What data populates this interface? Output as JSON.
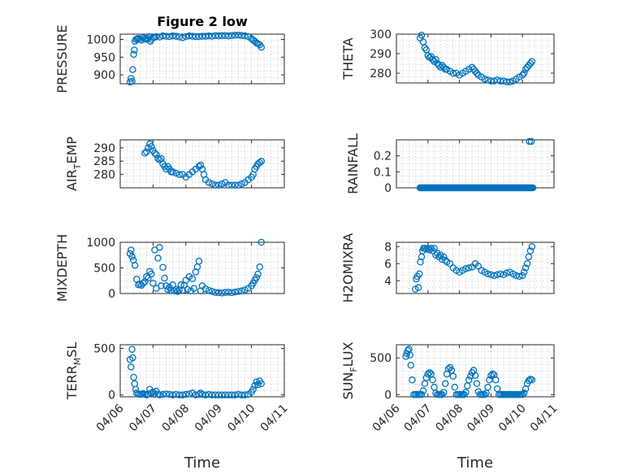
{
  "figure": {
    "title": "Figure 2 low"
  },
  "chart_data": [
    {
      "name": "pressure",
      "type": "scatter",
      "title": "Figure 2 low",
      "xlabel": "",
      "ylabel": "PRESSURE",
      "xlim": [
        0,
        5
      ],
      "ylim": [
        875,
        1015
      ],
      "yticks": [
        900,
        950,
        1000
      ],
      "ytick_labels": [
        "900",
        "950",
        "1000"
      ],
      "xticks": [
        0,
        1,
        2,
        3,
        4,
        5
      ],
      "grid": true,
      "marker_color": "#0072BD",
      "x": [
        0.3,
        0.33,
        0.36,
        0.38,
        0.41,
        0.43,
        0.45,
        0.48,
        0.52,
        0.55,
        0.6,
        0.65,
        0.7,
        0.75,
        0.8,
        0.85,
        0.88,
        0.92,
        0.95,
        1.0,
        1.05,
        1.1,
        1.2,
        1.3,
        1.4,
        1.5,
        1.6,
        1.7,
        1.8,
        1.9,
        2.0,
        2.1,
        2.2,
        2.3,
        2.4,
        2.5,
        2.6,
        2.7,
        2.8,
        2.9,
        3.0,
        3.1,
        3.2,
        3.3,
        3.4,
        3.5,
        3.6,
        3.7,
        3.8,
        3.9,
        4.0,
        4.05,
        4.1,
        4.15,
        4.2,
        4.25,
        4.3
      ],
      "y": [
        880,
        890,
        882,
        915,
        958,
        970,
        995,
        1000,
        1002,
        1003,
        1000,
        998,
        1005,
        1002,
        1000,
        1003,
        1008,
        995,
        1000,
        1005,
        1006,
        1008,
        1007,
        1010,
        1009,
        1008,
        1010,
        1009,
        1007,
        1005,
        1008,
        1010,
        1009,
        1008,
        1008,
        1009,
        1009,
        1010,
        1009,
        1011,
        1010,
        1011,
        1011,
        1010,
        1011,
        1012,
        1012,
        1011,
        1010,
        1008,
        1002,
        998,
        995,
        990,
        988,
        985,
        978
      ]
    },
    {
      "name": "theta",
      "type": "scatter",
      "title": "",
      "xlabel": "",
      "ylabel": "THETA",
      "xlim": [
        0,
        5
      ],
      "ylim": [
        275,
        300
      ],
      "yticks": [
        280,
        290,
        300
      ],
      "ytick_labels": [
        "280",
        "290",
        "300"
      ],
      "xticks": [
        0,
        1,
        2,
        3,
        4,
        5
      ],
      "grid": true,
      "marker_color": "#0072BD",
      "x": [
        0.75,
        0.8,
        0.85,
        0.9,
        0.95,
        1.0,
        1.05,
        1.1,
        1.15,
        1.2,
        1.25,
        1.3,
        1.35,
        1.4,
        1.45,
        1.5,
        1.55,
        1.6,
        1.7,
        1.8,
        1.9,
        2.0,
        2.1,
        2.2,
        2.3,
        2.4,
        2.45,
        2.5,
        2.55,
        2.6,
        2.7,
        2.8,
        2.9,
        3.0,
        3.1,
        3.2,
        3.3,
        3.4,
        3.5,
        3.6,
        3.7,
        3.8,
        3.9,
        4.0,
        4.05,
        4.1,
        4.15,
        4.2,
        4.25,
        4.3
      ],
      "y": [
        298,
        299.5,
        296,
        293,
        292,
        289,
        288,
        288.5,
        287,
        286,
        287,
        285,
        284,
        283,
        284,
        283,
        282,
        282,
        281,
        280,
        280,
        279,
        280,
        281,
        282,
        283,
        282,
        281,
        280,
        279,
        278,
        277,
        276.5,
        276,
        276,
        276.5,
        276,
        276,
        275.5,
        275.5,
        276,
        277,
        278,
        279,
        280,
        282,
        283,
        284,
        285,
        286
      ]
    },
    {
      "name": "air-temp",
      "type": "scatter",
      "title": "",
      "xlabel": "",
      "ylabel": "AIR_TEMP",
      "ylabel_main": "AIR",
      "ylabel_sub": "T",
      "ylabel_tail": "EMP",
      "xlim": [
        0,
        5
      ],
      "ylim": [
        275,
        293
      ],
      "yticks": [
        280,
        285,
        290
      ],
      "ytick_labels": [
        "280",
        "285",
        "290"
      ],
      "xticks": [
        0,
        1,
        2,
        3,
        4,
        5
      ],
      "grid": true,
      "marker_color": "#0072BD",
      "x": [
        0.75,
        0.8,
        0.85,
        0.9,
        0.95,
        1.0,
        1.05,
        1.1,
        1.15,
        1.2,
        1.25,
        1.3,
        1.35,
        1.4,
        1.45,
        1.5,
        1.55,
        1.6,
        1.7,
        1.8,
        1.9,
        2.0,
        2.1,
        2.2,
        2.3,
        2.4,
        2.45,
        2.5,
        2.55,
        2.6,
        2.7,
        2.8,
        2.9,
        3.0,
        3.1,
        3.2,
        3.3,
        3.4,
        3.5,
        3.6,
        3.7,
        3.8,
        3.9,
        4.0,
        4.05,
        4.1,
        4.15,
        4.2,
        4.25,
        4.3
      ],
      "y": [
        288,
        288.5,
        290,
        291.5,
        290.5,
        289,
        288,
        287.5,
        286,
        285.5,
        286,
        284,
        283,
        282,
        283,
        282,
        281,
        281,
        280.5,
        280,
        280,
        279,
        280,
        281,
        282,
        283,
        283.5,
        282,
        280,
        278,
        277,
        276.5,
        276,
        276,
        276.5,
        277,
        276,
        276,
        276,
        276,
        276.5,
        277,
        278,
        279,
        280,
        282,
        283,
        284,
        284.5,
        285
      ]
    },
    {
      "name": "rainfall",
      "type": "scatter",
      "title": "",
      "xlabel": "",
      "ylabel": "RAINFALL",
      "xlim": [
        0,
        5
      ],
      "ylim": [
        0,
        0.3
      ],
      "yticks": [
        0,
        0.1,
        0.2
      ],
      "ytick_labels": [
        "0",
        "0.1",
        "0.2"
      ],
      "xticks": [
        0,
        1,
        2,
        3,
        4,
        5
      ],
      "grid": true,
      "marker_color": "#0072BD",
      "x_range": [
        0.75,
        4.3
      ],
      "x_step": 0.03,
      "y_const": 0,
      "extra_x": [
        4.22,
        4.28,
        4.33
      ],
      "extra_y": [
        0.29,
        0.29,
        0
      ]
    },
    {
      "name": "mixdepth",
      "type": "scatter",
      "title": "",
      "xlabel": "",
      "ylabel": "MIXDEPTH",
      "xlim": [
        0,
        5
      ],
      "ylim": [
        0,
        1000
      ],
      "yticks": [
        0,
        500,
        1000
      ],
      "ytick_labels": [
        "0",
        "500",
        "1000"
      ],
      "xticks": [
        0,
        1,
        2,
        3,
        4,
        5
      ],
      "grid": true,
      "marker_color": "#0072BD",
      "x": [
        0.3,
        0.33,
        0.36,
        0.4,
        0.45,
        0.5,
        0.55,
        0.6,
        0.65,
        0.7,
        0.75,
        0.8,
        0.85,
        0.9,
        0.95,
        1.0,
        1.05,
        1.1,
        1.15,
        1.2,
        1.25,
        1.3,
        1.35,
        1.4,
        1.45,
        1.5,
        1.55,
        1.6,
        1.65,
        1.7,
        1.75,
        1.8,
        1.85,
        1.9,
        1.95,
        2.0,
        2.05,
        2.1,
        2.15,
        2.2,
        2.25,
        2.3,
        2.35,
        2.4,
        2.45,
        2.5,
        2.6,
        2.7,
        2.8,
        2.9,
        3.0,
        3.1,
        3.2,
        3.3,
        3.4,
        3.5,
        3.6,
        3.7,
        3.8,
        3.9,
        4.0,
        4.05,
        4.1,
        4.15,
        4.2,
        4.25,
        4.3
      ],
      "y": [
        780,
        850,
        720,
        650,
        550,
        280,
        170,
        180,
        160,
        200,
        230,
        330,
        300,
        430,
        380,
        200,
        850,
        100,
        690,
        900,
        150,
        510,
        300,
        150,
        80,
        120,
        60,
        170,
        50,
        80,
        40,
        70,
        170,
        60,
        160,
        260,
        80,
        330,
        50,
        290,
        100,
        420,
        520,
        630,
        50,
        150,
        90,
        60,
        40,
        20,
        15,
        10,
        20,
        25,
        15,
        30,
        40,
        50,
        70,
        100,
        150,
        200,
        260,
        310,
        380,
        520,
        1000
      ]
    },
    {
      "name": "h2omixra",
      "type": "scatter",
      "title": "",
      "xlabel": "",
      "ylabel": "H2OMIXRA",
      "xlim": [
        0,
        5
      ],
      "ylim": [
        2.5,
        8.5
      ],
      "yticks": [
        4,
        6,
        8
      ],
      "ytick_labels": [
        "4",
        "6",
        "8"
      ],
      "xticks": [
        0,
        1,
        2,
        3,
        4,
        5
      ],
      "grid": true,
      "marker_color": "#0072BD",
      "x": [
        0.6,
        0.63,
        0.66,
        0.7,
        0.73,
        0.76,
        0.8,
        0.83,
        0.86,
        0.9,
        0.95,
        1.0,
        1.05,
        1.1,
        1.15,
        1.2,
        1.25,
        1.3,
        1.35,
        1.4,
        1.45,
        1.5,
        1.55,
        1.6,
        1.7,
        1.8,
        1.9,
        2.0,
        2.1,
        2.2,
        2.3,
        2.4,
        2.5,
        2.6,
        2.7,
        2.8,
        2.9,
        3.0,
        3.1,
        3.2,
        3.3,
        3.4,
        3.5,
        3.6,
        3.7,
        3.8,
        3.9,
        4.0,
        4.05,
        4.1,
        4.15,
        4.2,
        4.25,
        4.3
      ],
      "y": [
        3.0,
        4.2,
        4.5,
        3.2,
        4.8,
        6.2,
        6.8,
        7.5,
        7.8,
        7.8,
        7.7,
        7.8,
        7.6,
        7.8,
        7.5,
        7.8,
        7.0,
        7.2,
        6.8,
        7.0,
        6.5,
        6.8,
        6.4,
        6.2,
        6.0,
        5.5,
        5.2,
        5.0,
        5.2,
        5.4,
        5.5,
        5.6,
        6.0,
        5.7,
        5.2,
        5.0,
        4.8,
        4.7,
        4.6,
        4.7,
        4.8,
        4.7,
        4.9,
        5.0,
        4.8,
        4.6,
        4.5,
        4.6,
        5.0,
        5.5,
        6.0,
        6.8,
        7.5,
        8.0
      ]
    },
    {
      "name": "terr-msl",
      "type": "scatter",
      "title": "",
      "xlabel": "Time",
      "ylabel": "TERR_MSL",
      "ylabel_main": "TERR",
      "ylabel_sub": "M",
      "ylabel_tail": "SL",
      "xlim": [
        0,
        5
      ],
      "ylim": [
        -20,
        540
      ],
      "yticks": [
        0,
        500
      ],
      "ytick_labels": [
        "0",
        "500"
      ],
      "xticks": [
        0,
        1,
        2,
        3,
        4,
        5
      ],
      "xtick_labels": [
        "04/06",
        "04/07",
        "04/08",
        "04/09",
        "04/10",
        "04/11"
      ],
      "grid": true,
      "marker_color": "#0072BD",
      "x": [
        0.3,
        0.33,
        0.36,
        0.38,
        0.41,
        0.44,
        0.47,
        0.5,
        0.55,
        0.6,
        0.65,
        0.7,
        0.75,
        0.8,
        0.85,
        0.9,
        0.95,
        1.0,
        1.05,
        1.1,
        1.15,
        1.2,
        1.3,
        1.4,
        1.5,
        1.6,
        1.7,
        1.8,
        1.9,
        2.0,
        2.1,
        2.2,
        2.3,
        2.4,
        2.45,
        2.5,
        2.6,
        2.7,
        2.8,
        2.9,
        3.0,
        3.1,
        3.2,
        3.3,
        3.4,
        3.5,
        3.6,
        3.7,
        3.8,
        3.9,
        4.0,
        4.05,
        4.1,
        4.15,
        4.2,
        4.25,
        4.3
      ],
      "y": [
        380,
        300,
        490,
        400,
        190,
        120,
        60,
        20,
        10,
        5,
        8,
        15,
        5,
        0,
        10,
        60,
        20,
        30,
        5,
        40,
        10,
        0,
        5,
        10,
        5,
        0,
        5,
        0,
        0,
        5,
        10,
        20,
        0,
        5,
        20,
        5,
        0,
        5,
        0,
        0,
        0,
        0,
        0,
        0,
        0,
        0,
        5,
        0,
        0,
        5,
        30,
        60,
        100,
        140,
        110,
        150,
        120
      ]
    },
    {
      "name": "sun-flux",
      "type": "scatter",
      "title": "",
      "xlabel": "Time",
      "ylabel": "SUN_FLUX",
      "ylabel_main": "SUN",
      "ylabel_sub": "F",
      "ylabel_tail": "LUX",
      "xlim": [
        0,
        5
      ],
      "ylim": [
        -30,
        680
      ],
      "yticks": [
        0,
        500
      ],
      "ytick_labels": [
        "0",
        "500"
      ],
      "xticks": [
        0,
        1,
        2,
        3,
        4,
        5
      ],
      "xtick_labels": [
        "04/06",
        "04/07",
        "04/08",
        "04/09",
        "04/10",
        "04/11"
      ],
      "grid": true,
      "marker_color": "#0072BD",
      "x": [
        0.3,
        0.33,
        0.36,
        0.4,
        0.43,
        0.46,
        0.5,
        0.55,
        0.6,
        0.65,
        0.7,
        0.75,
        0.8,
        0.85,
        0.9,
        0.95,
        1.0,
        1.05,
        1.1,
        1.15,
        1.2,
        1.25,
        1.3,
        1.35,
        1.4,
        1.45,
        1.5,
        1.55,
        1.6,
        1.65,
        1.7,
        1.75,
        1.8,
        1.85,
        1.9,
        1.95,
        2.0,
        2.05,
        2.1,
        2.15,
        2.2,
        2.25,
        2.3,
        2.35,
        2.4,
        2.45,
        2.5,
        2.55,
        2.6,
        2.65,
        2.7,
        2.75,
        2.8,
        2.85,
        2.9,
        2.95,
        3.0,
        3.05,
        3.1,
        3.15,
        3.2,
        3.25,
        3.3,
        3.35,
        3.4,
        3.45,
        3.5,
        3.55,
        3.6,
        3.65,
        3.7,
        3.75,
        3.8,
        3.85,
        3.9,
        3.95,
        4.0,
        4.05,
        4.1,
        4.15,
        4.2,
        4.25,
        4.3
      ],
      "y": [
        520,
        560,
        600,
        620,
        540,
        400,
        200,
        0,
        0,
        0,
        0,
        0,
        0,
        50,
        150,
        230,
        280,
        300,
        280,
        200,
        100,
        20,
        0,
        0,
        0,
        0,
        30,
        150,
        280,
        350,
        370,
        330,
        250,
        100,
        0,
        0,
        0,
        0,
        0,
        0,
        30,
        120,
        200,
        250,
        300,
        330,
        260,
        150,
        40,
        0,
        0,
        0,
        0,
        20,
        100,
        200,
        260,
        280,
        270,
        200,
        80,
        0,
        0,
        0,
        0,
        0,
        0,
        0,
        0,
        0,
        0,
        0,
        0,
        0,
        0,
        0,
        0,
        20,
        80,
        150,
        190,
        210,
        200
      ]
    }
  ]
}
